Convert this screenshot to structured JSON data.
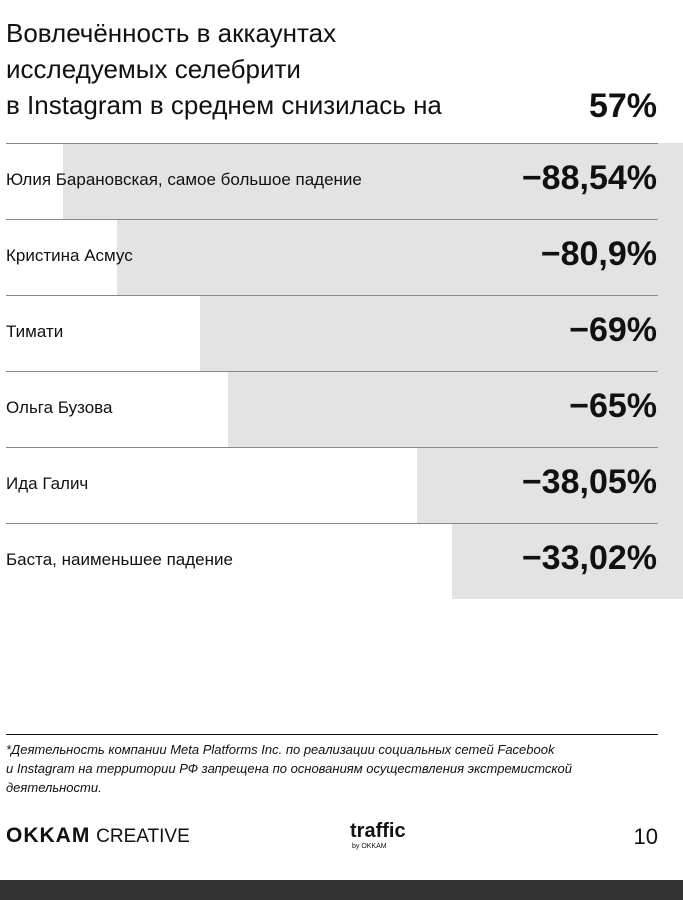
{
  "chart_data": {
    "type": "bar",
    "orientation": "horizontal",
    "title_lines": [
      "Вовлечённость в аккаунтах",
      "исследуемых селебрити",
      "в Instagram в среднем снизилась на"
    ],
    "headline": {
      "value": 57,
      "label": "57%"
    },
    "categories": [
      "Юлия Барановская, самое большое падение",
      "Кристина Асмус",
      "Тимати",
      "Ольга Бузова",
      "Ида Галич",
      "Баста, наименьшее падение"
    ],
    "values": [
      -88.54,
      -80.9,
      -69,
      -65,
      -38.05,
      -33.02
    ],
    "value_labels": [
      "−88,54%",
      "−80,9%",
      "−69%",
      "−65%",
      "−38,05%",
      "−33,02%"
    ],
    "color": "#e3e3e3"
  },
  "footnote_lines": [
    "*Деятельность компании Meta Platforms Inc. по реализации социальных сетей Facebook",
    "и Instagram на территории РФ запрещена по основаниям осуществления экстремистской",
    "деятельности."
  ],
  "footer": {
    "brand": "OKKAM",
    "brand_suffix": "CREATIVE",
    "logo": "traffic",
    "logo_sub": "by OKKAM",
    "page": "10"
  }
}
